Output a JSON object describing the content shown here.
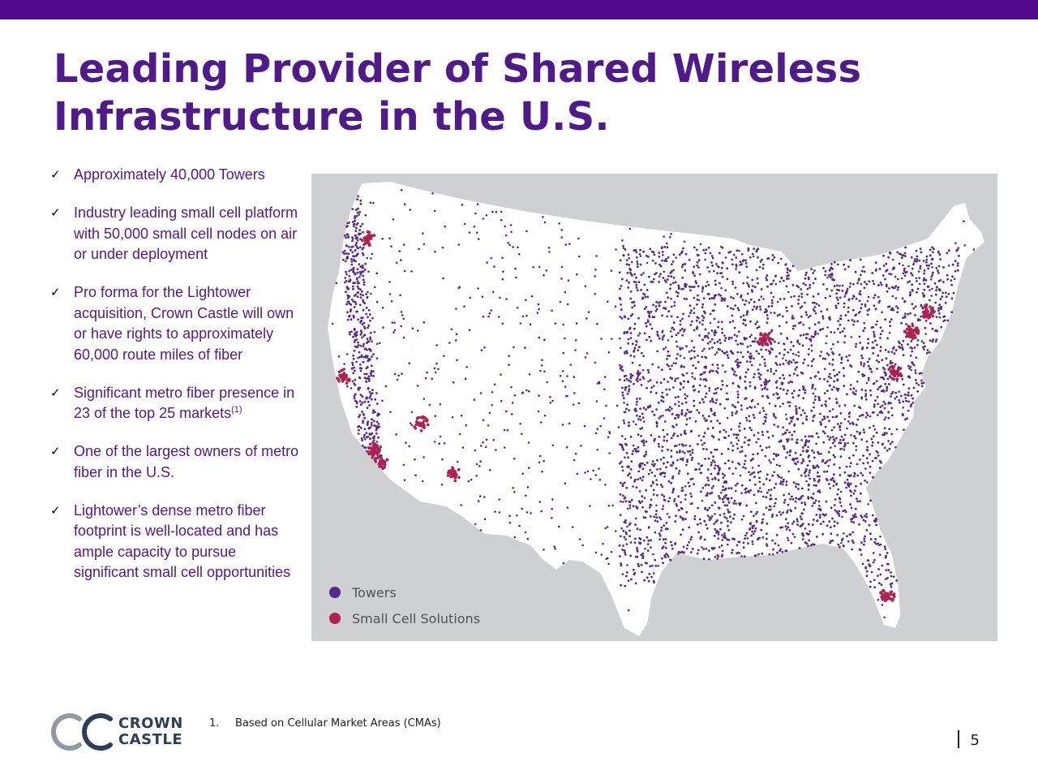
{
  "header": {
    "title_line1": "Leading Provider of Shared Wireless",
    "title_line2": "Infrastructure in the U.S."
  },
  "bullets": [
    {
      "text": "Approximately 40,000 Towers"
    },
    {
      "text": "Industry leading small cell platform with 50,000 small cell nodes on air or under deployment"
    },
    {
      "text": "Pro forma for the Lightower acquisition, Crown Castle will own or have rights to approximately 60,000 route miles of fiber"
    },
    {
      "text": "Significant metro fiber presence in 23 of the top 25 markets",
      "sup": "(1)"
    },
    {
      "text": "One of the largest owners of metro fiber in the U.S."
    },
    {
      "text": "Lightower’s dense metro fiber footprint is well-located and has ample capacity to pursue significant small cell opportunities"
    }
  ],
  "map": {
    "region": "Contiguous United States",
    "legend": [
      {
        "label": "Towers",
        "color": "#542a8e"
      },
      {
        "label": "Small Cell Solutions",
        "color": "#b0214e"
      }
    ]
  },
  "footnote": {
    "number": "1.",
    "text": "Based on Cellular Market Areas (CMAs)"
  },
  "logo": {
    "line1": "CROWN",
    "line2": "CASTLE"
  },
  "page": {
    "number": "5"
  },
  "colors": {
    "brand_purple": "#520a8c",
    "title_purple": "#4f1a8a",
    "map_background": "#cfd0d2"
  }
}
